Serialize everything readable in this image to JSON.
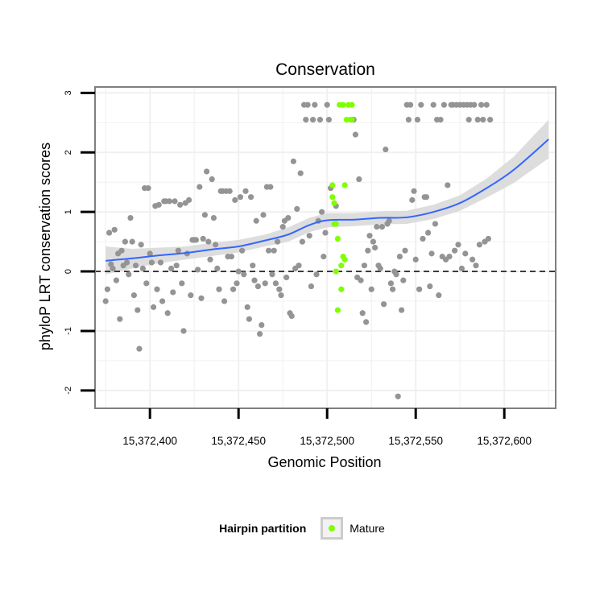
{
  "chart_data": {
    "type": "scatter",
    "title": "Conservation",
    "xlabel": "Genomic Position",
    "ylabel": "phyloP LRT conservation scores",
    "xlim": [
      15372369,
      15372629
    ],
    "ylim": [
      -2.3,
      3.1
    ],
    "x_ticks": [
      15372400,
      15372450,
      15372500,
      15372550,
      15372600
    ],
    "x_tick_labels": [
      "15,372,400",
      "15,372,450",
      "15,372,500",
      "15,372,550",
      "15,372,600"
    ],
    "y_ticks": [
      -2,
      -1,
      0,
      1,
      2,
      3
    ],
    "y_tick_labels": [
      "-2",
      "-1",
      "0",
      "1",
      "2",
      "3"
    ],
    "reference_line": {
      "y": 0,
      "style": "dashed"
    },
    "grid": true,
    "legend": {
      "title": "Hairpin partition",
      "position": "bottom",
      "entries": [
        {
          "label": "Mature",
          "color": "#7fff00"
        }
      ]
    },
    "colors": {
      "other": "#949494",
      "mature": "#7fff00",
      "smooth": "#3366ff",
      "ribbon": "#d9d9d9",
      "panel_border": "#7f7f7f"
    },
    "series": [
      {
        "name": "",
        "color": "#949494",
        "points": [
          [
            15372375,
            -0.5
          ],
          [
            15372376,
            -0.3
          ],
          [
            15372377,
            0.65
          ],
          [
            15372378,
            0.12
          ],
          [
            15372379,
            0.05
          ],
          [
            15372380,
            0.7
          ],
          [
            15372381,
            -0.15
          ],
          [
            15372382,
            0.3
          ],
          [
            15372383,
            -0.8
          ],
          [
            15372384,
            0.35
          ],
          [
            15372385,
            0.1
          ],
          [
            15372386,
            0.5
          ],
          [
            15372387,
            0.15
          ],
          [
            15372388,
            -0.05
          ],
          [
            15372389,
            0.9
          ],
          [
            15372390,
            0.5
          ],
          [
            15372391,
            -0.4
          ],
          [
            15372392,
            0.1
          ],
          [
            15372393,
            -0.65
          ],
          [
            15372394,
            -1.3
          ],
          [
            15372395,
            0.45
          ],
          [
            15372396,
            0.05
          ],
          [
            15372397,
            1.4
          ],
          [
            15372398,
            -0.2
          ],
          [
            15372399,
            1.4
          ],
          [
            15372400,
            0.3
          ],
          [
            15372401,
            0.15
          ],
          [
            15372402,
            -0.6
          ],
          [
            15372403,
            1.1
          ],
          [
            15372404,
            -0.3
          ],
          [
            15372405,
            1.12
          ],
          [
            15372406,
            0.15
          ],
          [
            15372407,
            -0.5
          ],
          [
            15372408,
            1.18
          ],
          [
            15372409,
            1.18
          ],
          [
            15372410,
            -0.7
          ],
          [
            15372411,
            1.18
          ],
          [
            15372412,
            0.05
          ],
          [
            15372413,
            -0.35
          ],
          [
            15372414,
            1.18
          ],
          [
            15372415,
            0.1
          ],
          [
            15372416,
            0.35
          ],
          [
            15372417,
            1.12
          ],
          [
            15372418,
            -0.2
          ],
          [
            15372419,
            -1.0
          ],
          [
            15372420,
            1.15
          ],
          [
            15372421,
            0.3
          ],
          [
            15372422,
            1.2
          ],
          [
            15372423,
            -0.4
          ],
          [
            15372424,
            0.53
          ],
          [
            15372425,
            0.53
          ],
          [
            15372426,
            0.53
          ],
          [
            15372427,
            0.03
          ],
          [
            15372428,
            1.42
          ],
          [
            15372429,
            -0.45
          ],
          [
            15372430,
            0.55
          ],
          [
            15372431,
            0.95
          ],
          [
            15372432,
            1.68
          ],
          [
            15372433,
            0.5
          ],
          [
            15372434,
            0.2
          ],
          [
            15372435,
            1.55
          ],
          [
            15372436,
            0.9
          ],
          [
            15372437,
            0.45
          ],
          [
            15372438,
            0.05
          ],
          [
            15372439,
            -0.3
          ],
          [
            15372440,
            1.35
          ],
          [
            15372441,
            1.35
          ],
          [
            15372442,
            -0.5
          ],
          [
            15372443,
            1.35
          ],
          [
            15372444,
            0.25
          ],
          [
            15372445,
            1.35
          ],
          [
            15372446,
            0.25
          ],
          [
            15372447,
            -0.3
          ],
          [
            15372448,
            1.2
          ],
          [
            15372449,
            -0.2
          ],
          [
            15372450,
            0.0
          ],
          [
            15372451,
            1.25
          ],
          [
            15372452,
            0.35
          ],
          [
            15372453,
            -0.05
          ],
          [
            15372454,
            1.35
          ],
          [
            15372455,
            -0.6
          ],
          [
            15372456,
            -0.8
          ],
          [
            15372457,
            1.25
          ],
          [
            15372458,
            0.1
          ],
          [
            15372459,
            -0.15
          ],
          [
            15372460,
            0.85
          ],
          [
            15372461,
            -0.25
          ],
          [
            15372462,
            -1.05
          ],
          [
            15372463,
            -0.9
          ],
          [
            15372464,
            0.95
          ],
          [
            15372465,
            -0.2
          ],
          [
            15372466,
            1.42
          ],
          [
            15372467,
            0.35
          ],
          [
            15372468,
            1.42
          ],
          [
            15372469,
            -0.05
          ],
          [
            15372470,
            0.35
          ],
          [
            15372471,
            -0.2
          ],
          [
            15372472,
            0.5
          ],
          [
            15372473,
            -0.3
          ],
          [
            15372474,
            -0.4
          ],
          [
            15372475,
            0.75
          ],
          [
            15372476,
            0.85
          ],
          [
            15372477,
            -0.1
          ],
          [
            15372478,
            0.9
          ],
          [
            15372479,
            -0.7
          ],
          [
            15372480,
            -0.75
          ],
          [
            15372481,
            1.85
          ],
          [
            15372482,
            0.05
          ],
          [
            15372483,
            1.05
          ],
          [
            15372484,
            0.1
          ],
          [
            15372485,
            1.65
          ],
          [
            15372486,
            0.5
          ],
          [
            15372487,
            2.8
          ],
          [
            15372488,
            2.55
          ],
          [
            15372489,
            2.8
          ],
          [
            15372490,
            0.6
          ],
          [
            15372491,
            -0.25
          ],
          [
            15372492,
            2.55
          ],
          [
            15372493,
            2.8
          ],
          [
            15372494,
            -0.05
          ],
          [
            15372495,
            0.85
          ],
          [
            15372496,
            2.55
          ],
          [
            15372497,
            1.0
          ],
          [
            15372498,
            0.25
          ],
          [
            15372499,
            0.65
          ],
          [
            15372500,
            2.8
          ],
          [
            15372501,
            2.55
          ],
          [
            15372502,
            1.4
          ],
          [
            15372505,
            1.1
          ],
          [
            15372515,
            2.55
          ],
          [
            15372516,
            2.3
          ],
          [
            15372517,
            -0.1
          ],
          [
            15372518,
            1.55
          ],
          [
            15372519,
            -0.15
          ],
          [
            15372520,
            -0.7
          ],
          [
            15372521,
            0.1
          ],
          [
            15372522,
            -0.85
          ],
          [
            15372523,
            0.35
          ],
          [
            15372524,
            0.6
          ],
          [
            15372525,
            -0.3
          ],
          [
            15372526,
            0.5
          ],
          [
            15372527,
            0.4
          ],
          [
            15372528,
            0.75
          ],
          [
            15372529,
            0.1
          ],
          [
            15372530,
            0.05
          ],
          [
            15372531,
            0.75
          ],
          [
            15372532,
            -0.55
          ],
          [
            15372533,
            2.05
          ],
          [
            15372534,
            0.8
          ],
          [
            15372535,
            0.85
          ],
          [
            15372536,
            -0.2
          ],
          [
            15372537,
            -0.3
          ],
          [
            15372538,
            0.0
          ],
          [
            15372539,
            -0.05
          ],
          [
            15372540,
            -2.1
          ],
          [
            15372541,
            0.25
          ],
          [
            15372542,
            -0.65
          ],
          [
            15372543,
            -0.15
          ],
          [
            15372544,
            0.35
          ],
          [
            15372545,
            2.8
          ],
          [
            15372546,
            2.55
          ],
          [
            15372547,
            2.8
          ],
          [
            15372548,
            1.2
          ],
          [
            15372549,
            1.35
          ],
          [
            15372550,
            0.2
          ],
          [
            15372551,
            2.55
          ],
          [
            15372552,
            -0.3
          ],
          [
            15372553,
            2.8
          ],
          [
            15372554,
            0.55
          ],
          [
            15372555,
            1.25
          ],
          [
            15372556,
            1.25
          ],
          [
            15372557,
            0.65
          ],
          [
            15372558,
            -0.25
          ],
          [
            15372559,
            0.3
          ],
          [
            15372560,
            2.8
          ],
          [
            15372561,
            0.8
          ],
          [
            15372562,
            2.55
          ],
          [
            15372563,
            -0.4
          ],
          [
            15372564,
            2.55
          ],
          [
            15372565,
            0.25
          ],
          [
            15372566,
            2.8
          ],
          [
            15372567,
            0.2
          ],
          [
            15372568,
            1.45
          ],
          [
            15372569,
            0.25
          ],
          [
            15372570,
            2.8
          ],
          [
            15372571,
            2.8
          ],
          [
            15372572,
            0.35
          ],
          [
            15372573,
            2.8
          ],
          [
            15372574,
            0.45
          ],
          [
            15372575,
            2.8
          ],
          [
            15372576,
            0.05
          ],
          [
            15372577,
            2.8
          ],
          [
            15372578,
            0.3
          ],
          [
            15372579,
            2.8
          ],
          [
            15372580,
            2.55
          ],
          [
            15372581,
            2.8
          ],
          [
            15372582,
            0.2
          ],
          [
            15372583,
            2.8
          ],
          [
            15372584,
            0.1
          ],
          [
            15372585,
            2.55
          ],
          [
            15372586,
            0.45
          ],
          [
            15372587,
            2.8
          ],
          [
            15372588,
            2.55
          ],
          [
            15372589,
            0.5
          ],
          [
            15372590,
            2.8
          ],
          [
            15372591,
            0.55
          ],
          [
            15372592,
            2.55
          ]
        ]
      },
      {
        "name": "Mature",
        "color": "#7fff00",
        "points": [
          [
            15372503,
            1.45
          ],
          [
            15372503,
            1.25
          ],
          [
            15372504,
            1.15
          ],
          [
            15372504,
            0.8
          ],
          [
            15372505,
            0.8
          ],
          [
            15372505,
            0.0
          ],
          [
            15372506,
            0.55
          ],
          [
            15372506,
            -0.65
          ],
          [
            15372507,
            2.8
          ],
          [
            15372508,
            -0.3
          ],
          [
            15372508,
            0.1
          ],
          [
            15372509,
            2.8
          ],
          [
            15372509,
            0.25
          ],
          [
            15372510,
            0.2
          ],
          [
            15372510,
            1.45
          ],
          [
            15372511,
            2.55
          ],
          [
            15372512,
            2.8
          ],
          [
            15372513,
            2.55
          ],
          [
            15372514,
            2.8
          ],
          [
            15372514,
            2.55
          ]
        ]
      }
    ],
    "smooth": {
      "x": [
        15372375,
        15372390,
        15372405,
        15372420,
        15372435,
        15372450,
        15372465,
        15372478,
        15372490,
        15372500,
        15372515,
        15372530,
        15372545,
        15372560,
        15372575,
        15372590,
        15372605,
        15372625
      ],
      "y": [
        0.18,
        0.22,
        0.27,
        0.31,
        0.37,
        0.42,
        0.52,
        0.62,
        0.78,
        0.86,
        0.87,
        0.9,
        0.91,
        1.0,
        1.15,
        1.4,
        1.7,
        2.22
      ],
      "lower": [
        -0.05,
        0.05,
        0.14,
        0.2,
        0.26,
        0.32,
        0.42,
        0.5,
        0.66,
        0.74,
        0.76,
        0.79,
        0.8,
        0.88,
        1.02,
        1.24,
        1.48,
        1.9
      ],
      "upper": [
        0.42,
        0.38,
        0.4,
        0.42,
        0.48,
        0.53,
        0.62,
        0.74,
        0.9,
        0.98,
        0.98,
        1.01,
        1.02,
        1.12,
        1.28,
        1.56,
        1.92,
        2.55
      ]
    }
  }
}
